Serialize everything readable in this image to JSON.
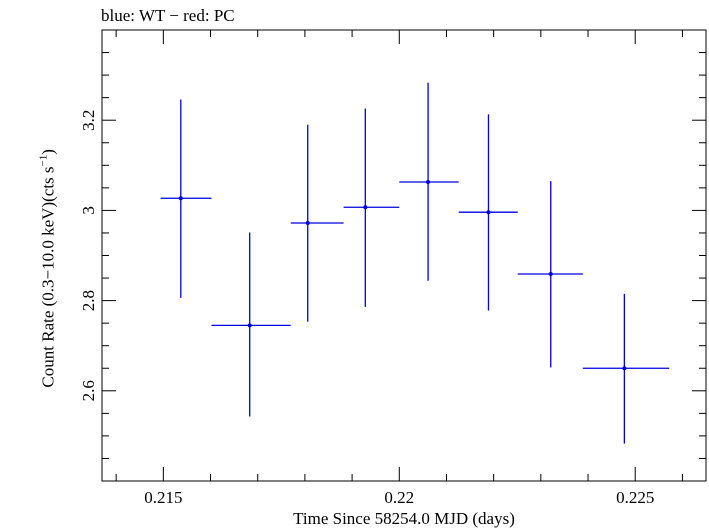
{
  "chart_data": {
    "type": "scatter",
    "title": "blue: WT − red: PC",
    "xlabel": "Time Since 58254.0 MJD (days)",
    "ylabel_main": "Count Rate (0.3−10.0 keV)(cts s",
    "ylabel_sup": "−1",
    "ylabel_close": ")",
    "xlim": [
      0.2137,
      0.2265
    ],
    "ylim": [
      2.4,
      3.4
    ],
    "xticks": [
      0.215,
      0.22,
      0.225
    ],
    "xtick_labels": [
      "0.215",
      "0.22",
      "0.225"
    ],
    "yticks": [
      2.6,
      2.8,
      3.0,
      3.2
    ],
    "ytick_labels": [
      "2.6",
      "2.8",
      "3",
      "3.2"
    ],
    "x_minor_step": 0.001,
    "y_minor_step": 0.05,
    "grid": false,
    "series": [
      {
        "color": "#0000e0",
        "points": [
          {
            "x": 0.21537,
            "xlo": 0.21494,
            "xhi": 0.21602,
            "y": 3.027,
            "ylo": 2.806,
            "yhi": 3.246
          },
          {
            "x": 0.21683,
            "xlo": 0.21602,
            "xhi": 0.2177,
            "y": 2.745,
            "ylo": 2.543,
            "yhi": 2.951
          },
          {
            "x": 0.21806,
            "xlo": 0.2177,
            "xhi": 0.21882,
            "y": 2.972,
            "ylo": 2.753,
            "yhi": 3.19
          },
          {
            "x": 0.21928,
            "xlo": 0.21882,
            "xhi": 0.22,
            "y": 3.007,
            "ylo": 2.786,
            "yhi": 3.226
          },
          {
            "x": 0.22061,
            "xlo": 0.22,
            "xhi": 0.22126,
            "y": 3.063,
            "ylo": 2.844,
            "yhi": 3.283
          },
          {
            "x": 0.22189,
            "xlo": 0.22126,
            "xhi": 0.22251,
            "y": 2.996,
            "ylo": 2.778,
            "yhi": 3.213
          },
          {
            "x": 0.22321,
            "xlo": 0.22251,
            "xhi": 0.22389,
            "y": 2.859,
            "ylo": 2.652,
            "yhi": 3.065
          },
          {
            "x": 0.22477,
            "xlo": 0.22389,
            "xhi": 0.22572,
            "y": 2.65,
            "ylo": 2.483,
            "yhi": 2.815
          }
        ]
      }
    ]
  }
}
